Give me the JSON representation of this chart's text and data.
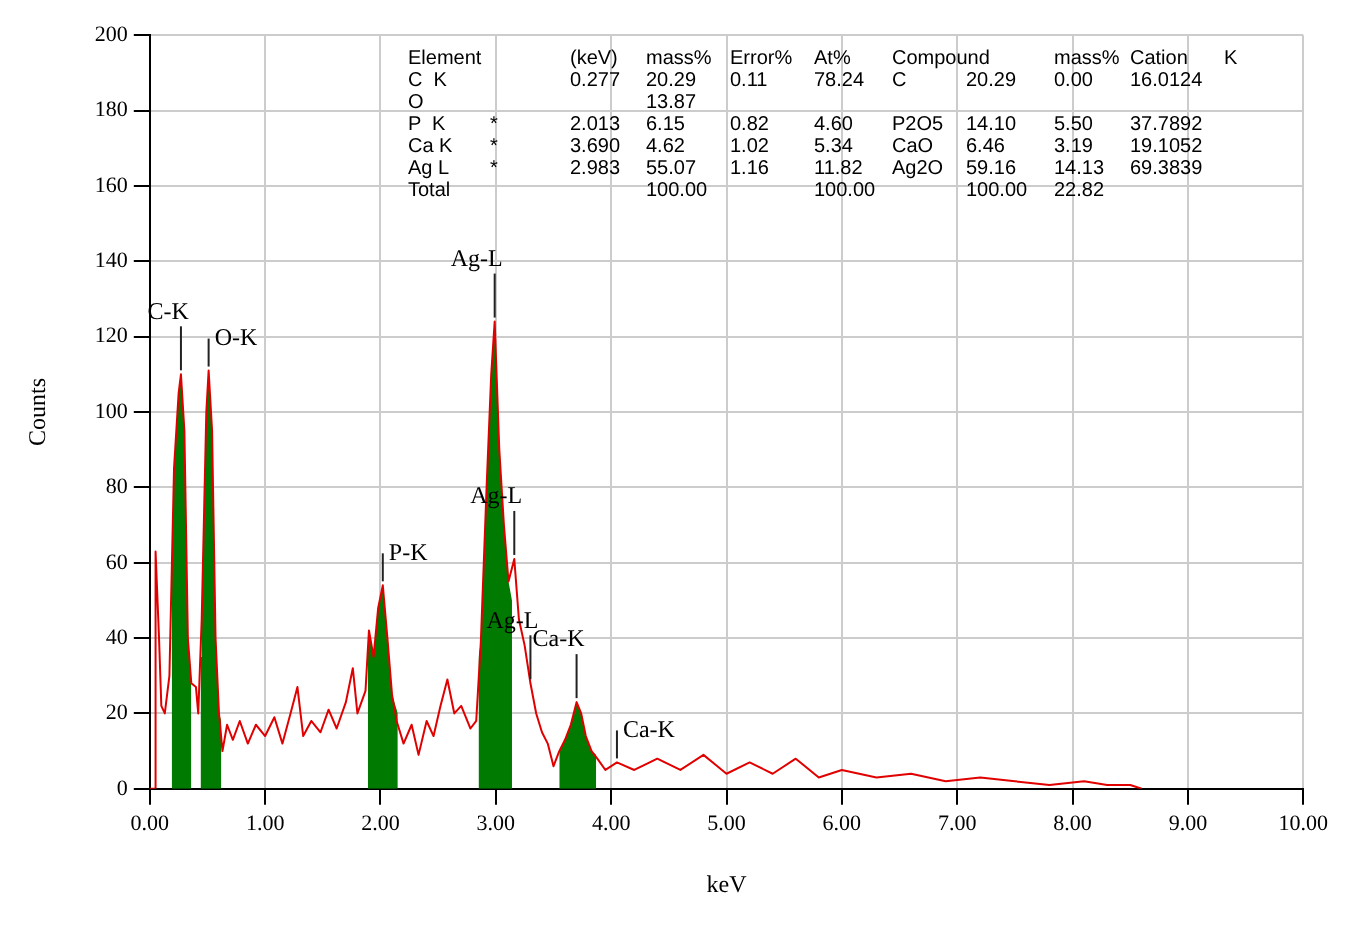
{
  "chart_data": {
    "type": "line",
    "xlabel": "keV",
    "ylabel": "Counts",
    "xlim": [
      0,
      10
    ],
    "ylim": [
      0,
      200
    ],
    "xticks": [
      {
        "value": 0,
        "label": "0.00"
      },
      {
        "value": 1,
        "label": "1.00"
      },
      {
        "value": 2,
        "label": "2.00"
      },
      {
        "value": 3,
        "label": "3.00"
      },
      {
        "value": 4,
        "label": "4.00"
      },
      {
        "value": 5,
        "label": "5.00"
      },
      {
        "value": 6,
        "label": "6.00"
      },
      {
        "value": 7,
        "label": "7.00"
      },
      {
        "value": 8,
        "label": "8.00"
      },
      {
        "value": 9,
        "label": "9.00"
      },
      {
        "value": 10,
        "label": "10.00"
      }
    ],
    "yticks": [
      0,
      20,
      40,
      60,
      80,
      100,
      120,
      140,
      160,
      180,
      200
    ],
    "grid": true,
    "legend": false,
    "series": [
      {
        "type": "line",
        "color": "#e00000",
        "x": [
          0,
          0.04,
          0.05,
          0.08,
          0.1,
          0.13,
          0.17,
          0.21,
          0.25,
          0.27,
          0.3,
          0.33,
          0.36,
          0.4,
          0.42,
          0.45,
          0.49,
          0.51,
          0.54,
          0.57,
          0.6,
          0.63,
          0.67,
          0.72,
          0.78,
          0.85,
          0.92,
          1,
          1.08,
          1.15,
          1.22,
          1.28,
          1.33,
          1.4,
          1.48,
          1.55,
          1.62,
          1.7,
          1.76,
          1.8,
          1.87,
          1.9,
          1.94,
          1.98,
          2.02,
          2.06,
          2.1,
          2.14,
          2.2,
          2.27,
          2.33,
          2.4,
          2.46,
          2.52,
          2.58,
          2.64,
          2.7,
          2.78,
          2.83,
          2.87,
          2.92,
          2.96,
          2.99,
          3.03,
          3.07,
          3.11,
          3.16,
          3.2,
          3.25,
          3.3,
          3.35,
          3.4,
          3.45,
          3.5,
          3.55,
          3.6,
          3.65,
          3.7,
          3.74,
          3.78,
          3.83,
          3.88,
          3.95,
          4.05,
          4.2,
          4.4,
          4.6,
          4.8,
          5,
          5.2,
          5.4,
          5.6,
          5.8,
          6,
          6.3,
          6.6,
          6.9,
          7.2,
          7.5,
          7.8,
          8.1,
          8.3,
          8.5,
          8.6
        ],
        "values": [
          0,
          0,
          63,
          40,
          22,
          20,
          30,
          85,
          105,
          110,
          95,
          40,
          28,
          27,
          20,
          45,
          100,
          111,
          95,
          40,
          20,
          10,
          17,
          13,
          18,
          12,
          17,
          14,
          19,
          12,
          20,
          27,
          14,
          18,
          15,
          21,
          16,
          23,
          32,
          20,
          26,
          42,
          35,
          48,
          54,
          40,
          25,
          18,
          12,
          17,
          9,
          18,
          14,
          22,
          29,
          20,
          22,
          16,
          18,
          39,
          80,
          110,
          124,
          90,
          70,
          55,
          61,
          45,
          38,
          28,
          20,
          15,
          12,
          6,
          10,
          13,
          17,
          23,
          20,
          14,
          10,
          8,
          5,
          7,
          5,
          8,
          5,
          9,
          4,
          7,
          4,
          8,
          3,
          5,
          3,
          4,
          2,
          3,
          2,
          1,
          2,
          1,
          1,
          0
        ]
      },
      {
        "type": "area",
        "color": "#007a00",
        "x": [
          0.19,
          0.21,
          0.25,
          0.27,
          0.3,
          0.33,
          0.36,
          0.4,
          0.44,
          0.45,
          0.49,
          0.51,
          0.54,
          0.57,
          0.6,
          0.62,
          0.7,
          1.89,
          1.9,
          1.94,
          1.98,
          2.02,
          2.06,
          2.1,
          2.15,
          2.5,
          2.85,
          2.87,
          2.92,
          2.96,
          2.99,
          3.03,
          3.07,
          3.11,
          3.14,
          3.3,
          3.55,
          3.6,
          3.65,
          3.7,
          3.74,
          3.78,
          3.83,
          3.87
        ],
        "values": [
          60,
          85,
          105,
          110,
          95,
          40,
          28,
          null,
          35,
          45,
          100,
          111,
          95,
          40,
          20,
          18,
          null,
          38,
          42,
          35,
          48,
          54,
          40,
          25,
          20,
          null,
          35,
          39,
          80,
          110,
          124,
          90,
          70,
          55,
          50,
          null,
          10,
          13,
          17,
          23,
          20,
          14,
          10,
          9
        ]
      }
    ],
    "annotations": [
      {
        "text": "C-K",
        "x": 0.27,
        "y": 110
      },
      {
        "text": "O-K",
        "x": 0.51,
        "y": 111
      },
      {
        "text": "P-K",
        "x": 2.02,
        "y": 54
      },
      {
        "text": "Ag-L",
        "x": 2.99,
        "y": 124
      },
      {
        "text": "Ag-L",
        "x": 3.16,
        "y": 61
      },
      {
        "text": "Ag-L",
        "x": 3.3,
        "y": 28
      },
      {
        "text": "Ca-K",
        "x": 3.7,
        "y": 23
      },
      {
        "text": "Ca-K",
        "x": 4.05,
        "y": 7
      },
      "Element\t\t(keV)\tmass%\tError%\tAt%\tCompound\t\tmass%\tCation\tK",
      "C  K\t\t0.277\t20.29\t0.11\t78.24\tC\t20.29\t0.00\t16.0124",
      "O\t\t\t13.87",
      "P  K\t*\t2.013\t6.15\t0.82\t4.60\tP2O5\t14.10\t5.50\t37.7892",
      "Ca K\t*\t3.690\t4.62\t1.02\t5.34\tCaO\t6.46\t3.19\t19.1052",
      "Ag L\t*\t2.983\t55.07\t1.16\t11.82\tAg2O\t59.16\t14.13\t69.3839",
      "Total\t\t\t100.00\t\t100.00\t\t100.00\t22.82"
    ]
  }
}
